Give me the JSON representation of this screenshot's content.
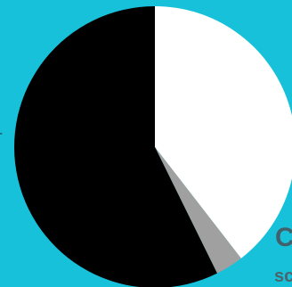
{
  "chart_data": {
    "type": "pie",
    "title": "",
    "slices": [
      {
        "value": 39.5,
        "color": "#ffffff"
      },
      {
        "value": 3.2,
        "color": "#a0a0a0"
      },
      {
        "value": 57.3,
        "color": "#000000"
      }
    ],
    "start_angle_deg": 0,
    "direction": "clockwise"
  },
  "cropped_text": {
    "edge_glyph": "-",
    "title_fragment": "C",
    "subtitle_fragment": "sc"
  },
  "colors": {
    "background": "#17c1d9"
  }
}
